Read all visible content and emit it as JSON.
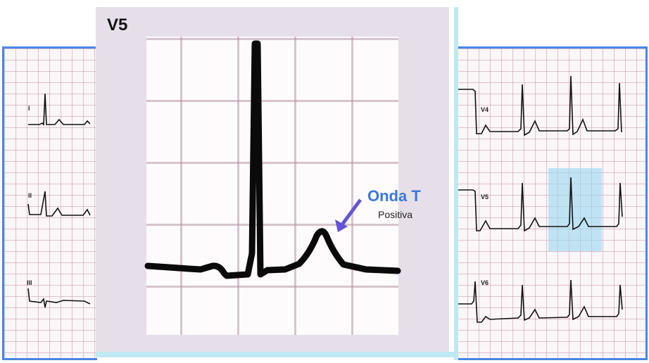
{
  "zoom": {
    "title": "V5"
  },
  "annotation": {
    "title": "Onda T",
    "subtitle": "Positiva"
  },
  "leads": {
    "limb": [
      "I",
      "II",
      "III"
    ],
    "precordial": [
      "V4",
      "V5",
      "V6"
    ]
  },
  "colors": {
    "frame": "#4a86e8",
    "annotation": "#3c78d8",
    "arrow": "#6353d6",
    "highlight": "#99d7f0"
  }
}
